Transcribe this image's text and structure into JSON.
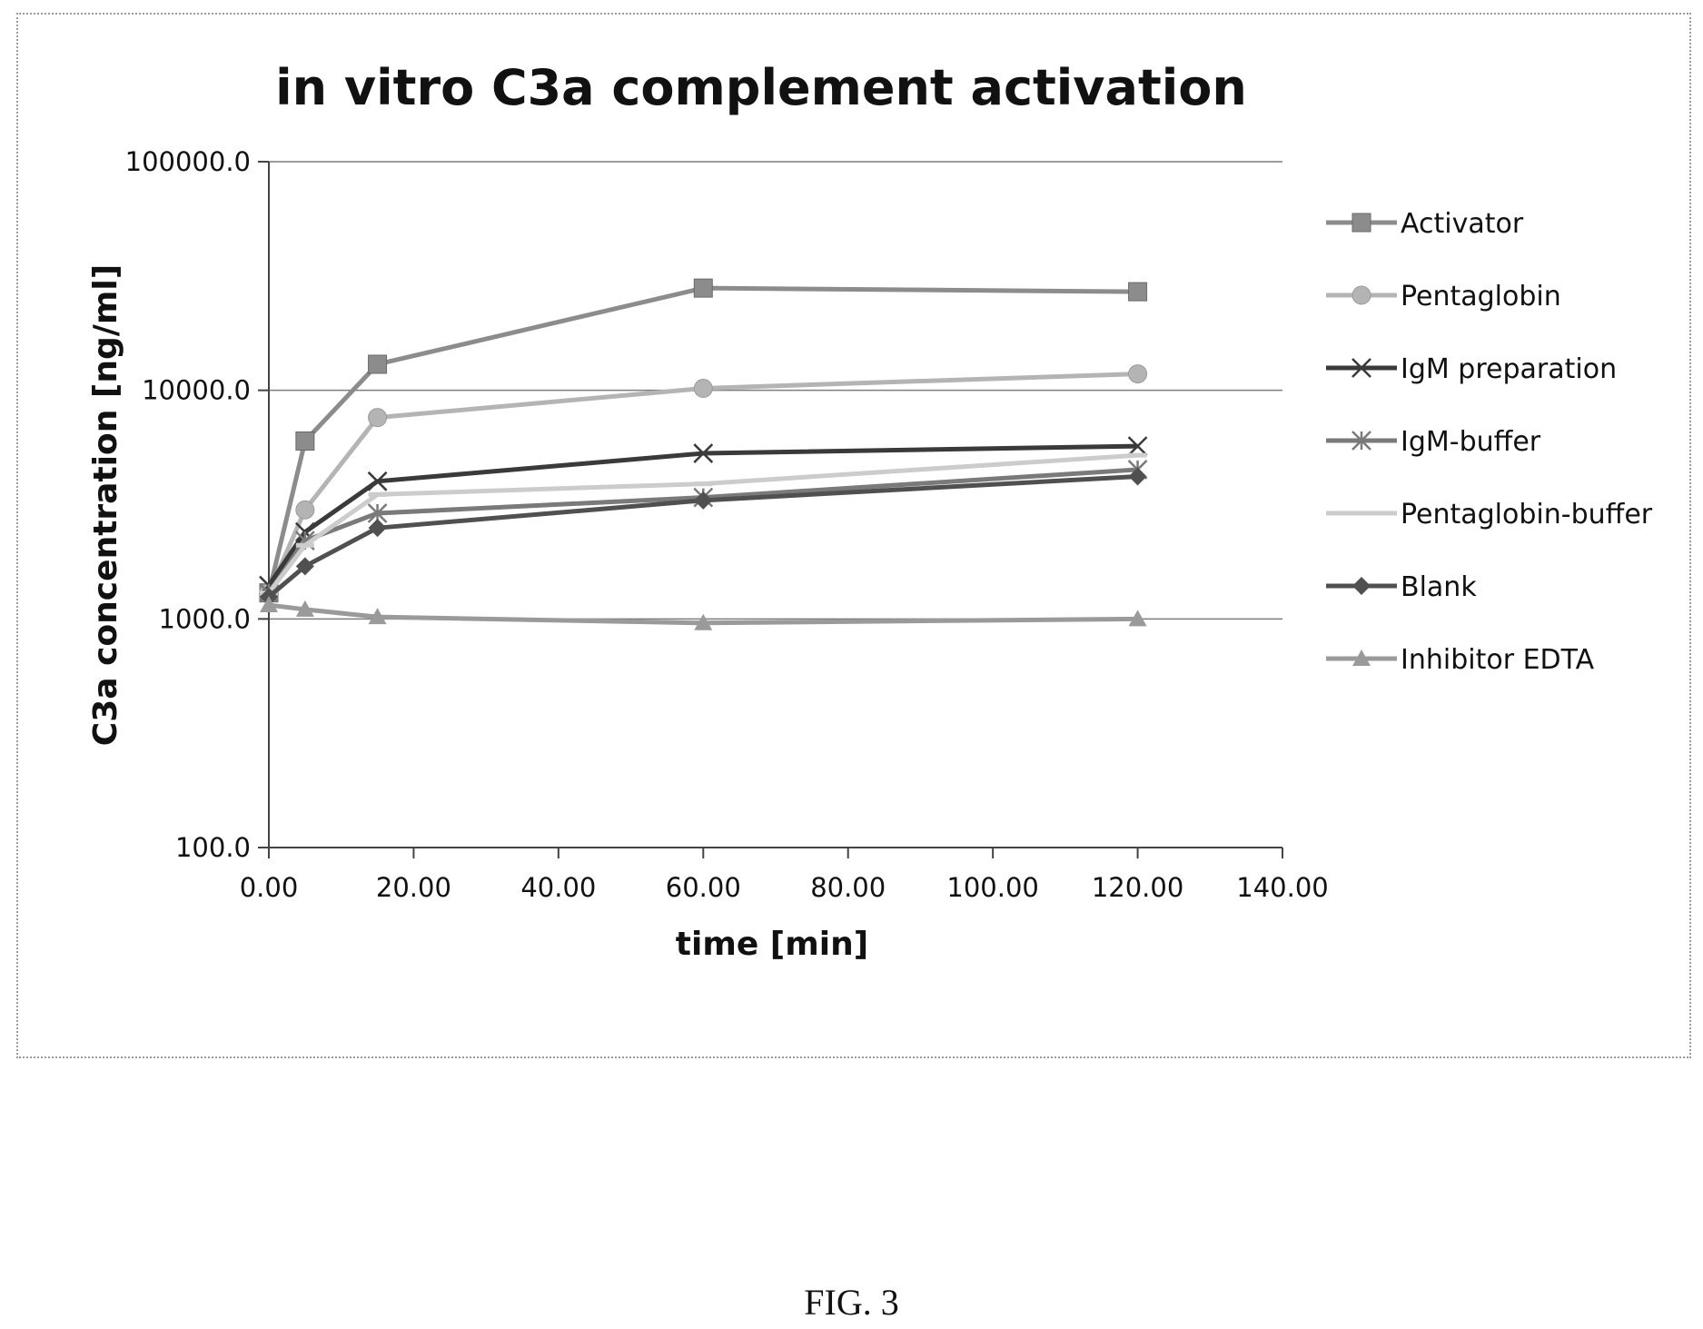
{
  "figure_caption": "FIG. 3",
  "chart_data": {
    "type": "line",
    "title": "in vitro C3a complement activation",
    "xlabel": "time [min]",
    "ylabel": "C3a concentration [ng/ml]",
    "x_scale": "linear",
    "y_scale": "log",
    "xlim": [
      0,
      140
    ],
    "ylim": [
      100,
      100000
    ],
    "x_ticks": [
      0,
      20,
      40,
      60,
      80,
      100,
      120,
      140
    ],
    "x_tick_labels": [
      "0.00",
      "20.00",
      "40.00",
      "60.00",
      "80.00",
      "100.00",
      "120.00",
      "140.00"
    ],
    "y_ticks": [
      100,
      1000,
      10000,
      100000
    ],
    "y_tick_labels": [
      "100.0",
      "1000.0",
      "10000.0",
      "100000.0"
    ],
    "grid": "horizontal major",
    "legend_position": "right",
    "x": [
      0,
      5,
      15,
      60,
      120
    ],
    "series": [
      {
        "name": "Activator",
        "values": [
          1300,
          6000,
          13000,
          28000,
          27000
        ],
        "color": "#8c8c8c",
        "marker": "square"
      },
      {
        "name": "Pentaglobin",
        "values": [
          1300,
          3000,
          7600,
          10200,
          11800
        ],
        "color": "#b4b4b4",
        "marker": "circle"
      },
      {
        "name": "IgM preparation",
        "values": [
          1400,
          2400,
          4000,
          5300,
          5700
        ],
        "color": "#3a3a3a",
        "marker": "x"
      },
      {
        "name": "IgM-buffer",
        "values": [
          1300,
          2200,
          2900,
          3400,
          4500
        ],
        "color": "#7a7a7a",
        "marker": "star"
      },
      {
        "name": "Pentaglobin-buffer",
        "values": [
          1300,
          2100,
          3500,
          3900,
          5200
        ],
        "color": "#cccccc",
        "marker": "dash"
      },
      {
        "name": "Blank",
        "values": [
          1250,
          1700,
          2500,
          3300,
          4200
        ],
        "color": "#505050",
        "marker": "diamond"
      },
      {
        "name": "Inhibitor EDTA",
        "values": [
          1150,
          1100,
          1020,
          960,
          1000
        ],
        "color": "#9a9a9a",
        "marker": "triangle"
      }
    ]
  }
}
